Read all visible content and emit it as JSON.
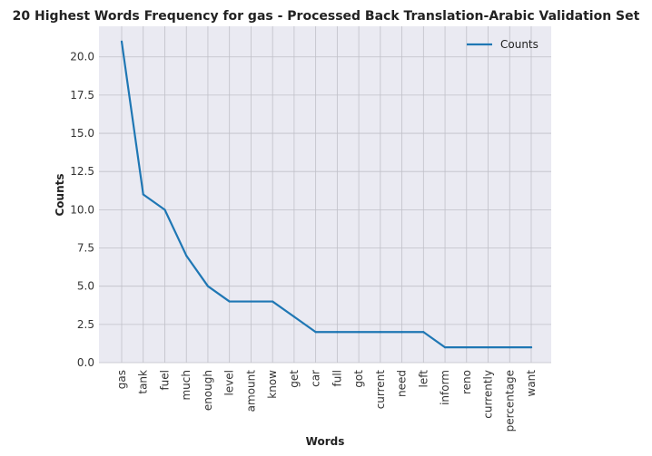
{
  "chart_data": {
    "type": "line",
    "title": "20 Highest Words Frequency for gas - Processed Back Translation-Arabic Validation Set",
    "xlabel": "Words",
    "ylabel": "Counts",
    "categories": [
      "gas",
      "tank",
      "fuel",
      "much",
      "enough",
      "level",
      "amount",
      "know",
      "get",
      "car",
      "full",
      "got",
      "current",
      "need",
      "left",
      "inform",
      "reno",
      "currently",
      "percentage",
      "want"
    ],
    "series": [
      {
        "name": "Counts",
        "values": [
          21,
          11,
          10,
          7,
          5,
          4,
          4,
          4,
          3,
          2,
          2,
          2,
          2,
          2,
          2,
          1,
          1,
          1,
          1,
          1
        ],
        "color": "#1f77b4"
      }
    ],
    "ylim": [
      0,
      22.0
    ],
    "yticks": [
      "0.0",
      "2.5",
      "5.0",
      "7.5",
      "10.0",
      "12.5",
      "15.0",
      "17.5",
      "20.0"
    ],
    "grid": true,
    "legend_position": "top-right",
    "colors": {
      "plot_background": "#eaeaf2",
      "grid": "#c0c0c8"
    }
  }
}
